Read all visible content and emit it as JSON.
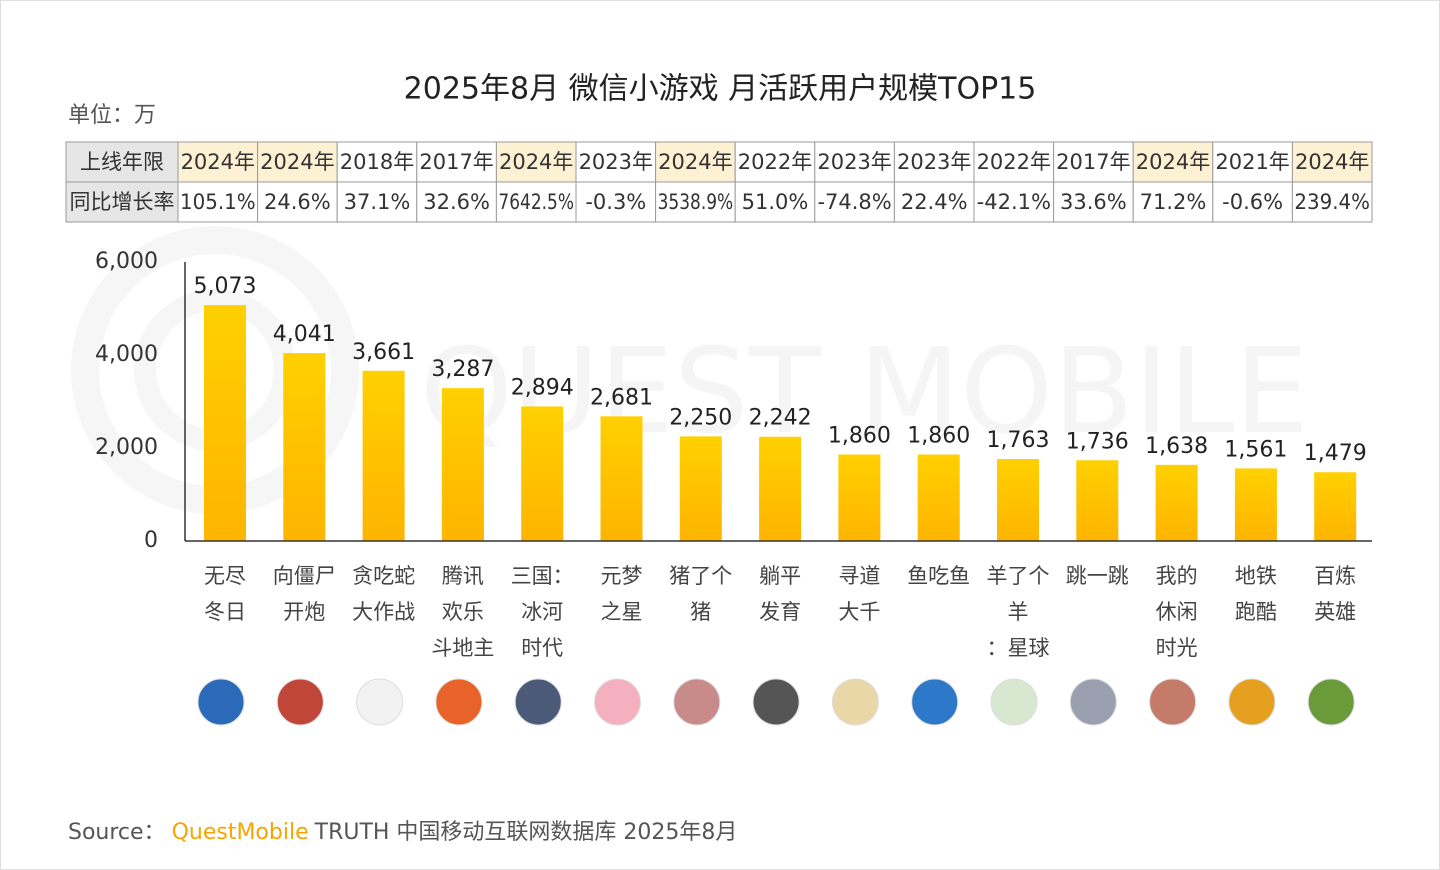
{
  "chart_data": {
    "type": "bar",
    "title": "2025年8月 微信小游戏 月活跃用户规模TOP15",
    "unit_label": "单位：万",
    "watermark": "QUEST MOBILE",
    "categories": [
      [
        "无尽",
        "冬日"
      ],
      [
        "向僵尸",
        "开炮"
      ],
      [
        "贪吃蛇",
        "大作战"
      ],
      [
        "腾讯",
        "欢乐",
        "斗地主"
      ],
      [
        "三国：",
        "冰河",
        "时代"
      ],
      [
        "元梦",
        "之星"
      ],
      [
        "猪了个",
        "猪"
      ],
      [
        "躺平",
        "发育"
      ],
      [
        "寻道",
        "大千"
      ],
      [
        "鱼吃鱼"
      ],
      [
        "羊了个",
        "羊",
        "：星球"
      ],
      [
        "跳一跳"
      ],
      [
        "我的",
        "休闲",
        "时光"
      ],
      [
        "地铁",
        "跑酷"
      ],
      [
        "百炼",
        "英雄"
      ]
    ],
    "values": [
      5073,
      4041,
      3661,
      3287,
      2894,
      2681,
      2250,
      2242,
      1860,
      1860,
      1763,
      1736,
      1638,
      1561,
      1479
    ],
    "value_labels": [
      "5,073",
      "4,041",
      "3,661",
      "3,287",
      "2,894",
      "2,681",
      "2,250",
      "2,242",
      "1,860",
      "1,860",
      "1,763",
      "1,736",
      "1,638",
      "1,561",
      "1,479"
    ],
    "color": "#ffc000",
    "ylim": [
      0,
      6000
    ],
    "yticks": [
      0,
      {
        "value": 2000,
        "label": "2,000"
      },
      {
        "value": 4000,
        "label": "4,000"
      },
      {
        "value": 6000,
        "label": "6,000"
      }
    ],
    "table": {
      "rows": [
        {
          "header": "上线年限",
          "cells": [
            "2024年",
            "2024年",
            "2018年",
            "2017年",
            "2024年",
            "2023年",
            "2024年",
            "2022年",
            "2023年",
            "2023年",
            "2022年",
            "2017年",
            "2024年",
            "2021年",
            "2024年"
          ],
          "highlight": [
            true,
            true,
            false,
            false,
            true,
            false,
            true,
            false,
            false,
            false,
            false,
            false,
            true,
            false,
            true
          ],
          "highlight_color": "#fdf1d4"
        },
        {
          "header": "同比增长率",
          "cells": [
            "105.1%",
            "24.6%",
            "37.1%",
            "32.6%",
            "7642.5%",
            "-0.3%",
            "3538.9%",
            "51.0%",
            "-74.8%",
            "22.4%",
            "-42.1%",
            "33.6%",
            "71.2%",
            "-0.6%",
            "239.4%"
          ]
        }
      ]
    },
    "source": {
      "prefix": "Source：",
      "brand": "QuestMobile",
      "text": "TRUTH 中国移动互联网数据库 2025年8月"
    }
  }
}
